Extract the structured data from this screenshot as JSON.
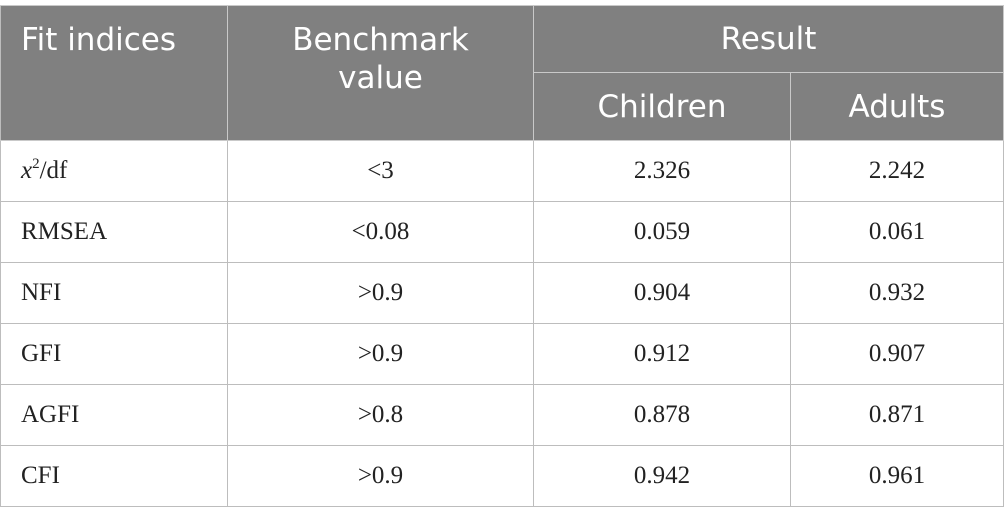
{
  "table": {
    "headers": {
      "fit_indices": "Fit indices",
      "benchmark_line1": "Benchmark",
      "benchmark_line2": "value",
      "result": "Result",
      "children": "Children",
      "adults": "Adults"
    },
    "rows": [
      {
        "index_var": "x",
        "index_sup": "2",
        "index_rest": "/df",
        "benchmark": "<3",
        "children": "2.326",
        "adults": "2.242"
      },
      {
        "index": "RMSEA",
        "benchmark": "<0.08",
        "children": "0.059",
        "adults": "0.061"
      },
      {
        "index": "NFI",
        "benchmark": ">0.9",
        "children": "0.904",
        "adults": "0.932"
      },
      {
        "index": "GFI",
        "benchmark": ">0.9",
        "children": "0.912",
        "adults": "0.907"
      },
      {
        "index": "AGFI",
        "benchmark": ">0.8",
        "children": "0.878",
        "adults": "0.871"
      },
      {
        "index": "CFI",
        "benchmark": ">0.9",
        "children": "0.942",
        "adults": "0.961"
      }
    ]
  },
  "colors": {
    "header_bg": "#808080",
    "header_text": "#ffffff",
    "grid": "#bdbdbd",
    "body_text": "#222222"
  }
}
